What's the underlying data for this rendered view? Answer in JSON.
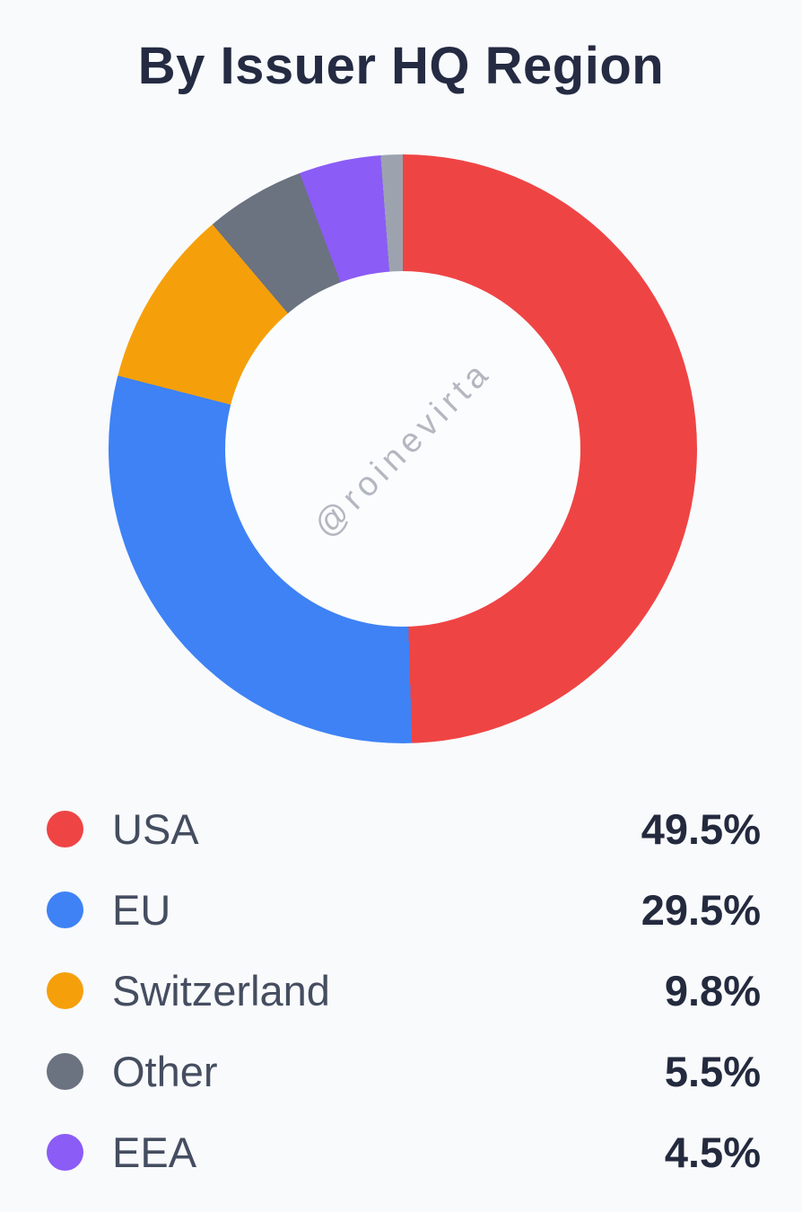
{
  "page": {
    "background_color": "#F9FAFC",
    "title_color": "#242B42",
    "label_color": "#454D60",
    "value_color": "#242A3E"
  },
  "title": "By Issuer HQ Region",
  "watermark": "@roinevirta",
  "chart_data": {
    "type": "pie",
    "variant": "donut",
    "title": "By Issuer HQ Region",
    "unit": "%",
    "start_angle_deg": 0,
    "direction": "clockwise",
    "legend_position": "bottom",
    "segments": [
      {
        "label": "USA",
        "value": 49.5,
        "color": "#EF4444"
      },
      {
        "label": "EU",
        "value": 29.5,
        "color": "#3E82F5"
      },
      {
        "label": "Switzerland",
        "value": 9.8,
        "color": "#F5A00B"
      },
      {
        "label": "Other",
        "value": 5.5,
        "color": "#6B7280"
      },
      {
        "label": "EEA",
        "value": 4.5,
        "color": "#8B5CF6"
      },
      {
        "label": "",
        "value": 1.2,
        "color": "#9CA3AF"
      }
    ],
    "legend": [
      {
        "label": "USA",
        "value_text": "49.5%",
        "color": "#EF4444"
      },
      {
        "label": "EU",
        "value_text": "29.5%",
        "color": "#3E82F5"
      },
      {
        "label": "Switzerland",
        "value_text": "9.8%",
        "color": "#F5A00B"
      },
      {
        "label": "Other",
        "value_text": "5.5%",
        "color": "#6B7280"
      },
      {
        "label": "EEA",
        "value_text": "4.5%",
        "color": "#8B5CF6"
      }
    ]
  }
}
